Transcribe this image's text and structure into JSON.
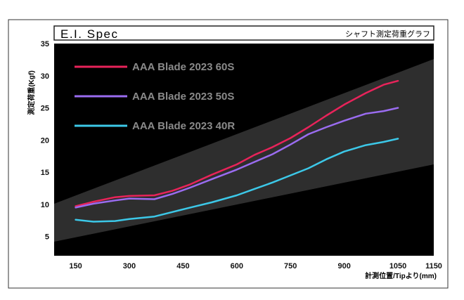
{
  "header": {
    "title": "E.I. Spec",
    "subtitle": "シャフト測定荷重グラフ"
  },
  "colors": {
    "background_dark": "#000000",
    "band": "#2e2e2e",
    "frame": "#333333",
    "label": "#8a8a8a"
  },
  "chart_data": {
    "type": "line",
    "xlabel": "計測位置/Tipより(mm)",
    "ylabel": "測定荷重(Kgf)",
    "xlim": [
      90,
      1150
    ],
    "ylim": [
      2,
      35
    ],
    "x_ticks": [
      150,
      300,
      450,
      600,
      750,
      900,
      1050,
      1150
    ],
    "y_ticks": [
      5,
      10,
      15,
      20,
      25,
      30,
      35
    ],
    "grid": false,
    "legend_position": "top-left",
    "series": [
      {
        "name": "AAA Blade 2023 60S",
        "color": "#e8235a",
        "x": [
          150,
          200,
          260,
          300,
          370,
          420,
          470,
          530,
          600,
          650,
          700,
          750,
          800,
          850,
          900,
          960,
          1010,
          1050
        ],
        "y": [
          9.7,
          10.4,
          11.1,
          11.3,
          11.4,
          12.1,
          13.1,
          14.6,
          16.2,
          17.7,
          18.9,
          20.3,
          22.0,
          23.8,
          25.5,
          27.3,
          28.6,
          29.2
        ]
      },
      {
        "name": "AAA Blade 2023 50S",
        "color": "#9a6cf0",
        "x": [
          150,
          200,
          260,
          300,
          370,
          420,
          470,
          530,
          600,
          650,
          700,
          750,
          800,
          850,
          900,
          960,
          1010,
          1050
        ],
        "y": [
          9.5,
          10.1,
          10.6,
          10.9,
          10.8,
          11.6,
          12.6,
          13.9,
          15.4,
          16.6,
          17.8,
          19.3,
          20.9,
          22.0,
          23.0,
          24.1,
          24.5,
          25.0
        ]
      },
      {
        "name": "AAA Blade 2023 40R",
        "color": "#3cc8e8",
        "x": [
          150,
          200,
          260,
          300,
          370,
          420,
          470,
          530,
          600,
          650,
          700,
          750,
          800,
          850,
          900,
          960,
          1010,
          1050
        ],
        "y": [
          7.6,
          7.3,
          7.4,
          7.7,
          8.1,
          8.8,
          9.5,
          10.3,
          11.4,
          12.4,
          13.4,
          14.5,
          15.6,
          17.0,
          18.2,
          19.2,
          19.7,
          20.2
        ]
      }
    ]
  }
}
